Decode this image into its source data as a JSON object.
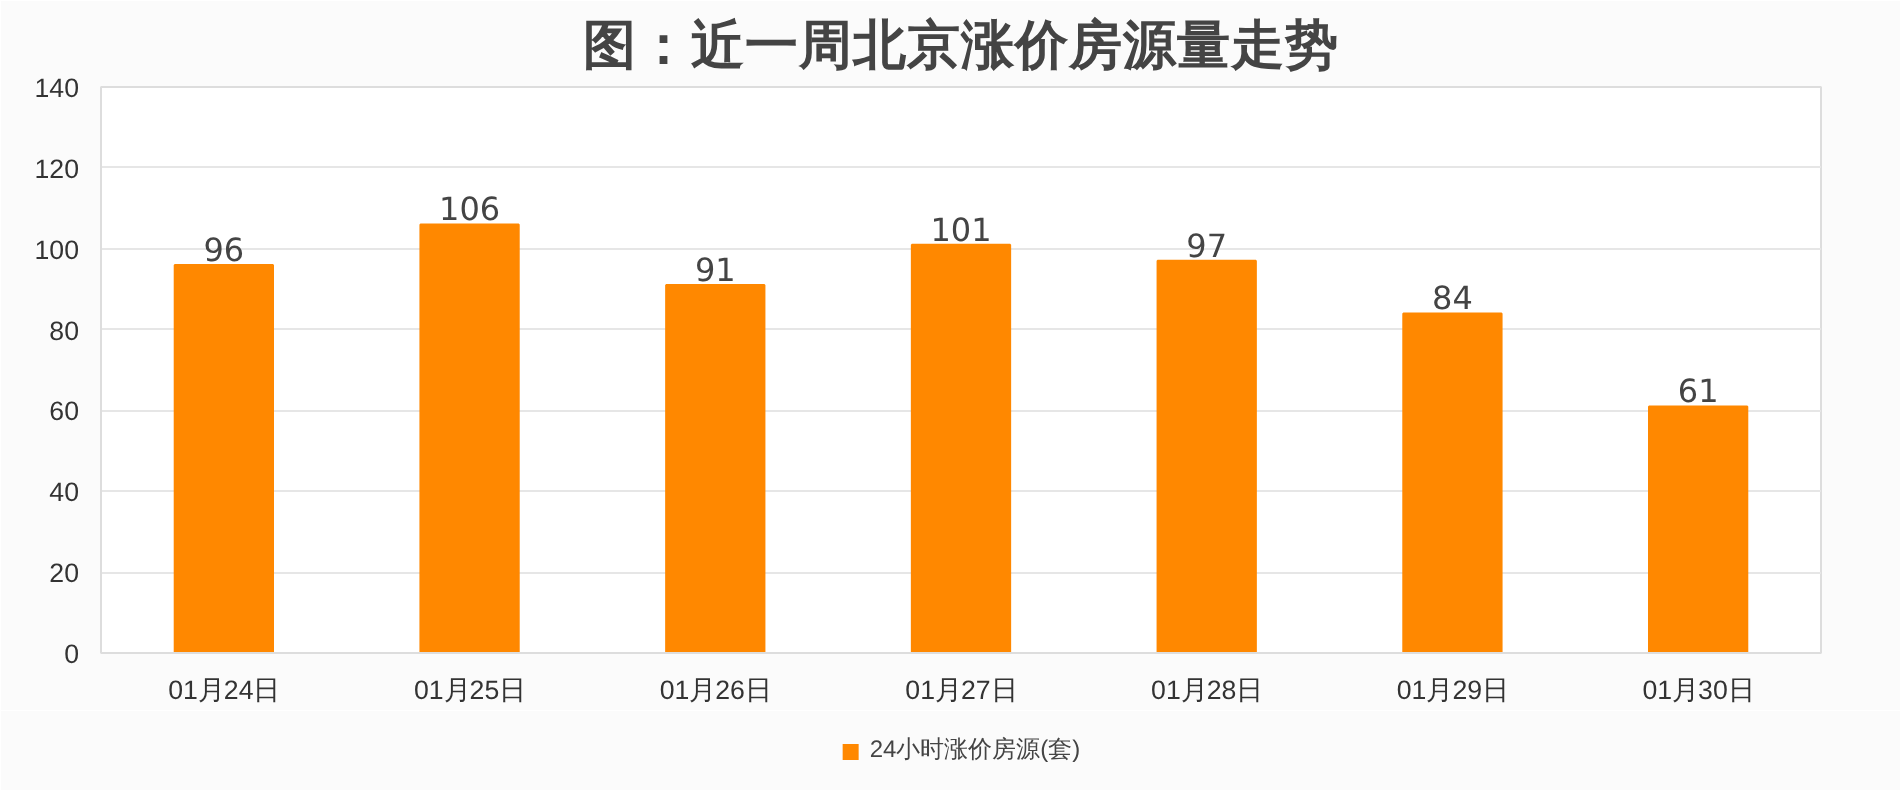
{
  "chart_data": {
    "type": "bar",
    "title": "图：近一周北京涨价房源量走势",
    "categories": [
      "01月24日",
      "01月25日",
      "01月26日",
      "01月27日",
      "01月28日",
      "01月29日",
      "01月30日"
    ],
    "series": [
      {
        "name": "24小时涨价房源(套)",
        "color": "#ff8800",
        "values": [
          96,
          106,
          91,
          101,
          97,
          84,
          61
        ]
      }
    ],
    "ylim": [
      0,
      140
    ],
    "yticks": [
      0,
      20,
      40,
      60,
      80,
      100,
      120,
      140
    ],
    "grid": "y",
    "legend": "bottom",
    "data_labels": true
  }
}
